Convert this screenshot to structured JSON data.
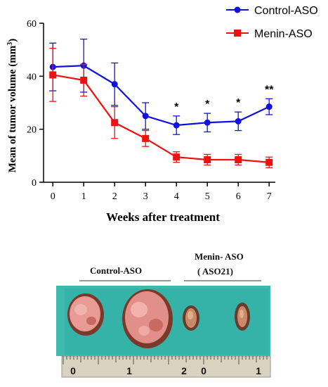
{
  "chart_data": {
    "type": "line",
    "xlabel": "Weeks after treatment",
    "ylabel": "Mean of tumor volume (mm",
    "ylabel_sup": "3",
    "ylabel_close": ")",
    "x": [
      0,
      1,
      2,
      3,
      4,
      5,
      6,
      7
    ],
    "xticks": [
      "0",
      "1",
      "2",
      "3",
      "4",
      "5",
      "6",
      "7"
    ],
    "yticks": [
      "0",
      "20",
      "40",
      "60"
    ],
    "ylim": [
      0,
      60
    ],
    "xlim": [
      -0.3,
      7.2
    ],
    "series": [
      {
        "name": "Control-ASO",
        "color": "#1010e0",
        "marker": "circle",
        "values": [
          43.5,
          44,
          37,
          25,
          21.5,
          22.5,
          23,
          28.5
        ],
        "err": [
          9,
          10,
          8,
          5,
          3.5,
          3.5,
          3.5,
          3
        ]
      },
      {
        "name": "Menin-ASO",
        "color": "#ee1111",
        "marker": "square",
        "values": [
          40.5,
          38.5,
          22.5,
          16.5,
          9.5,
          8.5,
          8.5,
          7.5
        ],
        "err": [
          10,
          6,
          6,
          3,
          2,
          2,
          2,
          2
        ]
      }
    ],
    "significance": [
      {
        "x": 4,
        "label": "*"
      },
      {
        "x": 5,
        "label": "*"
      },
      {
        "x": 6,
        "label": "*"
      },
      {
        "x": 7,
        "label": "**"
      }
    ]
  },
  "photo": {
    "group1_label": "Control-ASO",
    "group2_label_line1": "Menin- ASO",
    "group2_label_line2": "( ASO21)",
    "ruler_numbers": [
      "0",
      "1",
      "2",
      "0",
      "1"
    ],
    "colors": {
      "background": "#3fb8ad",
      "ruler": "#d8d3c0",
      "tumor_pink": "#e89a95",
      "tumor_dark": "#7a3a2a"
    }
  }
}
